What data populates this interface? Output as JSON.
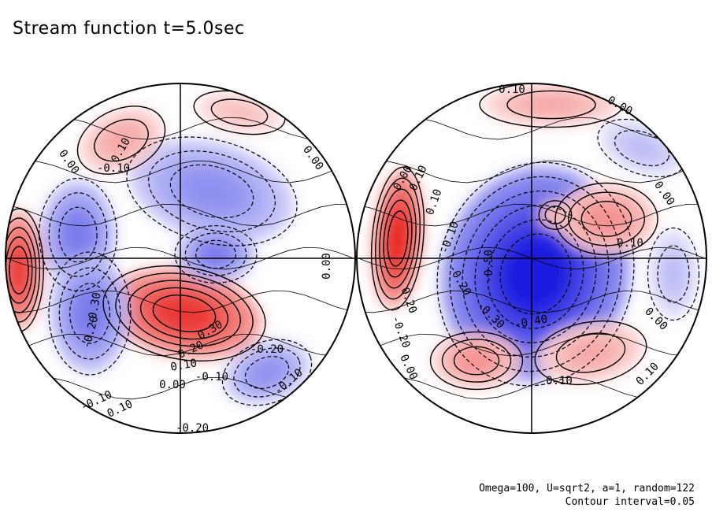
{
  "title": "Stream function t=5.0sec",
  "footnote": {
    "line1": "Omega=100, U=sqrt2, a=1, random=122",
    "line2": "Contour interval=0.05"
  },
  "colors": {
    "positive": "#e8221e",
    "negative": "#1f1fe0",
    "background": "#ffffff",
    "lines": "#000000"
  },
  "chart_data": {
    "type": "heatmap",
    "title": "Stream function t=5.0sec",
    "contour_interval": 0.05,
    "projection": "orthographic, two hemispheres",
    "colormap": "blue (negative) - white - red (positive)",
    "hemispheres": [
      {
        "name": "left",
        "contour_labels": [
          "0.00",
          "0.10",
          "0.00",
          "0.00",
          "-0.10",
          "-0.20",
          "-0.30",
          "0.30",
          "0.20",
          "0.10",
          "0.00",
          "-0.10",
          "-0.20",
          "-0.10",
          "-0.10",
          "-0.20",
          "0.10"
        ],
        "features": [
          {
            "kind": "max",
            "approx_value": 0.45
          },
          {
            "kind": "max",
            "approx_value": 0.45
          },
          {
            "kind": "min",
            "approx_value": -0.3
          },
          {
            "kind": "min",
            "approx_value": -0.3
          },
          {
            "kind": "min",
            "approx_value": -0.25
          },
          {
            "kind": "min",
            "approx_value": -0.3
          },
          {
            "kind": "min",
            "approx_value": -0.25
          },
          {
            "kind": "max",
            "approx_value": 0.2
          },
          {
            "kind": "max",
            "approx_value": 0.15
          }
        ]
      },
      {
        "name": "right",
        "contour_labels": [
          "0.10",
          "0.00",
          "0.00",
          "0.10",
          "0.10",
          "0.00",
          "-0.10",
          "-0.50",
          "-0.20",
          "-0.30",
          "-0.40",
          "0.20",
          "-0.20",
          "0.00",
          "0.10",
          "0.10",
          "0.00",
          "0.10"
        ],
        "features": [
          {
            "kind": "min",
            "approx_value": -0.55
          },
          {
            "kind": "max",
            "approx_value": 0.5
          },
          {
            "kind": "max",
            "approx_value": 0.25
          },
          {
            "kind": "max",
            "approx_value": 0.2
          },
          {
            "kind": "max",
            "approx_value": 0.2
          },
          {
            "kind": "max",
            "approx_value": 0.25
          },
          {
            "kind": "max",
            "approx_value": 0.2
          },
          {
            "kind": "min",
            "approx_value": -0.15
          },
          {
            "kind": "min",
            "approx_value": -0.15
          }
        ]
      }
    ]
  }
}
